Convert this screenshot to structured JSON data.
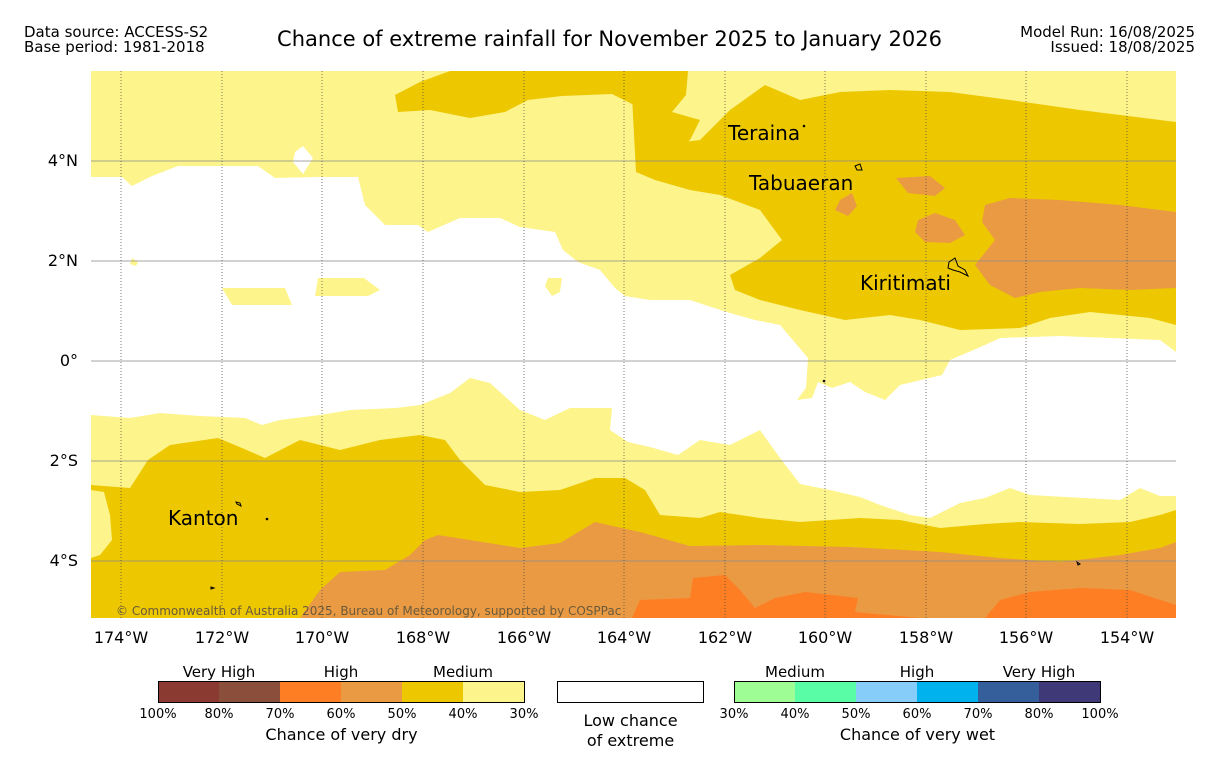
{
  "header": {
    "data_source": "Data source: ACCESS-S2",
    "base_period": "Base period: 1981-2018",
    "title": "Chance of extreme rainfall for November 2025 to January 2026",
    "model_run": "Model Run: 16/08/2025",
    "issued": "Issued: 18/08/2025"
  },
  "map": {
    "lat_labels": [
      "4°N",
      "2°N",
      "0°",
      "2°S",
      "4°S"
    ],
    "lon_labels": [
      "174°W",
      "172°W",
      "170°W",
      "168°W",
      "166°W",
      "164°W",
      "162°W",
      "160°W",
      "158°W",
      "156°W",
      "154°W"
    ],
    "places": [
      "Teraina",
      "Tabuaeran",
      "Kiritimati",
      "Kanton"
    ],
    "copyright": "© Commonwealth of Australia 2025, Bureau of Meteorology, supported by COSPPac",
    "colors": {
      "medium_dry": "#fdf48c",
      "med_high_dry": "#edc800",
      "high_dry": "#eb9a44",
      "high_dry_strong": "#fd7e23",
      "ocean_low": "#ffffff"
    }
  },
  "legend": {
    "dry": {
      "categories": [
        "Very High",
        "High",
        "Medium"
      ],
      "ticks": [
        "100%",
        "80%",
        "70%",
        "60%",
        "50%",
        "40%",
        "30%"
      ],
      "colors": [
        "#8b3a32",
        "#8a4e3a",
        "#fd7e23",
        "#eb9a44",
        "#edc800",
        "#fdf48c"
      ],
      "title": "Chance of very dry"
    },
    "low": {
      "line1": "Low chance",
      "line2": "of extreme"
    },
    "wet": {
      "categories": [
        "Medium",
        "High",
        "Very High"
      ],
      "ticks": [
        "30%",
        "40%",
        "50%",
        "60%",
        "70%",
        "80%",
        "100%"
      ],
      "colors": [
        "#9efd94",
        "#58fda6",
        "#87cdfa",
        "#00b2ee",
        "#345f9b",
        "#3f3a77"
      ],
      "title": "Chance of very wet"
    }
  }
}
